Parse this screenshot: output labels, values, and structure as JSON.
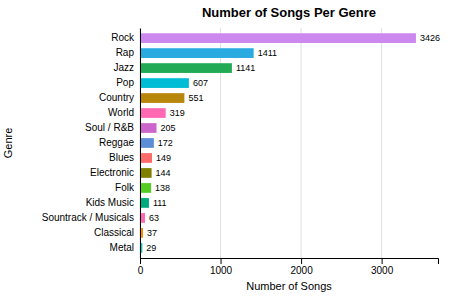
{
  "chart_data": {
    "type": "bar",
    "orientation": "horizontal",
    "title": "Number of Songs Per Genre",
    "xlabel": "Number of Songs",
    "ylabel": "Genre",
    "categories": [
      "Metal",
      "Classical",
      "Sountrack / Musicals",
      "Kids Music",
      "Folk",
      "Electronic",
      "Blues",
      "Reggae",
      "Soul / R&B",
      "World",
      "Country",
      "Pop",
      "Jazz",
      "Rap",
      "Rock"
    ],
    "values": [
      29,
      37,
      63,
      111,
      138,
      144,
      149,
      172,
      205,
      319,
      551,
      607,
      1141,
      1411,
      3426
    ],
    "colors": [
      "#00CCCC",
      "#FF8C00",
      "#FF69B4",
      "#00AA7F",
      "#55CC22",
      "#808000",
      "#FF6B6B",
      "#5B8ED6",
      "#CC66CC",
      "#FF69B4",
      "#B8860B",
      "#00BCD4",
      "#22AA55",
      "#29ABE2",
      "#CC88EE"
    ],
    "xlim": [
      0,
      3700
    ],
    "xticks": [
      0,
      1000,
      2000,
      3000
    ],
    "grid": true,
    "data_labels": true
  }
}
